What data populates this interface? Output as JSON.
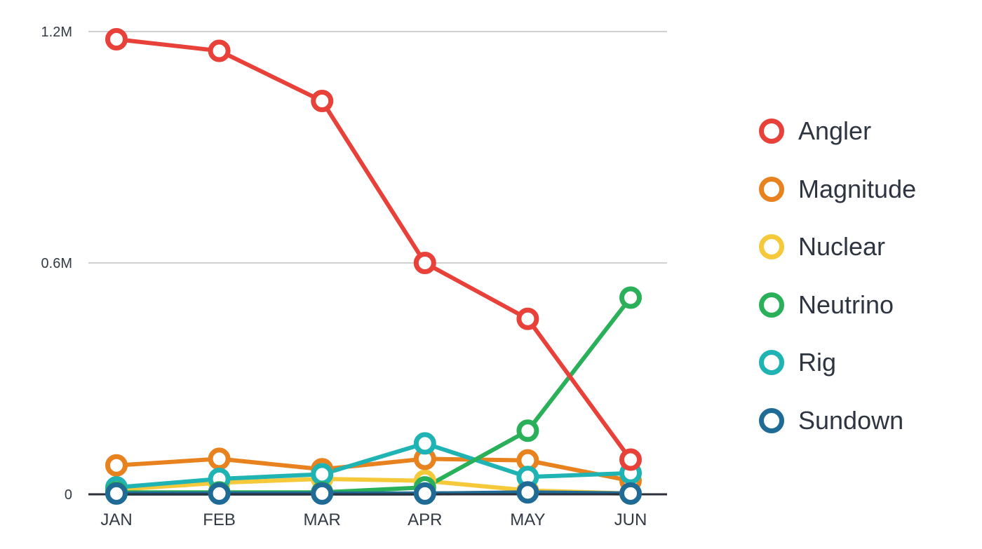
{
  "chart_data": {
    "type": "line",
    "categories": [
      "JAN",
      "FEB",
      "MAR",
      "APR",
      "MAY",
      "JUN"
    ],
    "yticks": [
      {
        "value": 0,
        "label": "0"
      },
      {
        "value": 0.6,
        "label": "0.6M"
      },
      {
        "value": 1.2,
        "label": "1.2M"
      }
    ],
    "ylim": [
      0,
      1.2
    ],
    "grid": true,
    "legend_position": "right",
    "series": [
      {
        "name": "Angler",
        "color": "#e8413a",
        "values": [
          1.18,
          1.15,
          1.02,
          0.6,
          0.455,
          0.09
        ]
      },
      {
        "name": "Magnitude",
        "color": "#e8821f",
        "values": [
          0.075,
          0.092,
          0.065,
          0.092,
          0.088,
          0.035
        ]
      },
      {
        "name": "Nuclear",
        "color": "#f5c93a",
        "values": [
          0.012,
          0.03,
          0.04,
          0.035,
          0.01,
          0.002
        ]
      },
      {
        "name": "Neutrino",
        "color": "#2bb05a",
        "values": [
          0.005,
          0.005,
          0.005,
          0.018,
          0.165,
          0.51
        ]
      },
      {
        "name": "Rig",
        "color": "#1fb3b3",
        "values": [
          0.018,
          0.04,
          0.052,
          0.132,
          0.045,
          0.055
        ]
      },
      {
        "name": "Sundown",
        "color": "#1f6b96",
        "values": [
          0.002,
          0.002,
          0.002,
          0.002,
          0.005,
          0.002
        ]
      }
    ]
  }
}
